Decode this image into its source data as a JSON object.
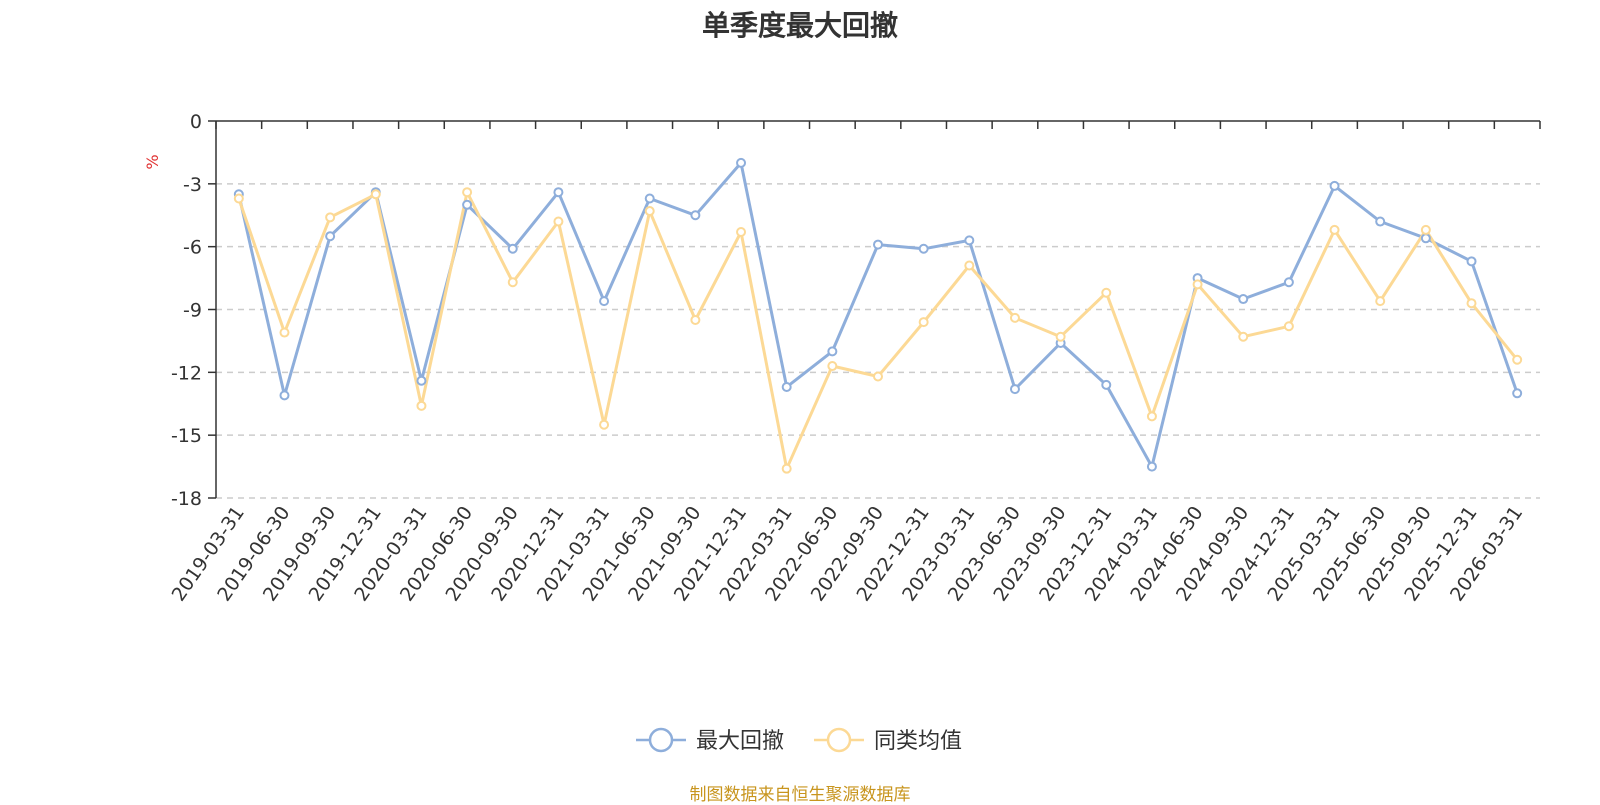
{
  "chart_data": {
    "type": "line",
    "title": "单季度最大回撤",
    "ylabel": "%",
    "ylim": [
      -18,
      0
    ],
    "yticks": [
      0,
      -3,
      -6,
      -9,
      -12,
      -15,
      -18
    ],
    "grid": true,
    "legend_position": "bottom-center",
    "categories": [
      "2019-03-31",
      "2019-06-30",
      "2019-09-30",
      "2019-12-31",
      "2020-03-31",
      "2020-06-30",
      "2020-09-30",
      "2020-12-31",
      "2021-03-31",
      "2021-06-30",
      "2021-09-30",
      "2021-12-31",
      "2022-03-31",
      "2022-06-30",
      "2022-09-30",
      "2022-12-31",
      "2023-03-31",
      "2023-06-30",
      "2023-09-30",
      "2023-12-31",
      "2024-03-31",
      "2024-06-30",
      "2024-09-30",
      "2024-12-31",
      "2025-03-31",
      "2025-06-30",
      "2025-09-30",
      "2025-12-31",
      "2026-03-31"
    ],
    "series": [
      {
        "name": "最大回撤",
        "color": "#8eaedb",
        "values": [
          -3.5,
          -13.1,
          -5.5,
          -3.4,
          -12.4,
          -4.0,
          -6.1,
          -3.4,
          -8.6,
          -3.7,
          -4.5,
          -2.0,
          -12.7,
          -11.0,
          -5.9,
          -6.1,
          -5.7,
          -12.8,
          -10.6,
          -12.6,
          -16.5,
          -7.5,
          -8.5,
          -7.7,
          -3.1,
          -4.8,
          -5.6,
          -6.7,
          -13.0
        ]
      },
      {
        "name": "同类均值",
        "color": "#fcd995",
        "values": [
          -3.7,
          -10.1,
          -4.6,
          -3.5,
          -13.6,
          -3.4,
          -7.7,
          -4.8,
          -14.5,
          -4.3,
          -9.5,
          -5.3,
          -16.6,
          -11.7,
          -12.2,
          -9.6,
          -6.9,
          -9.4,
          -10.3,
          -8.2,
          -14.1,
          -7.8,
          -10.3,
          -9.8,
          -5.2,
          -8.6,
          -5.2,
          -8.7,
          -11.4
        ]
      }
    ]
  },
  "source_note": "制图数据来自恒生聚源数据库"
}
